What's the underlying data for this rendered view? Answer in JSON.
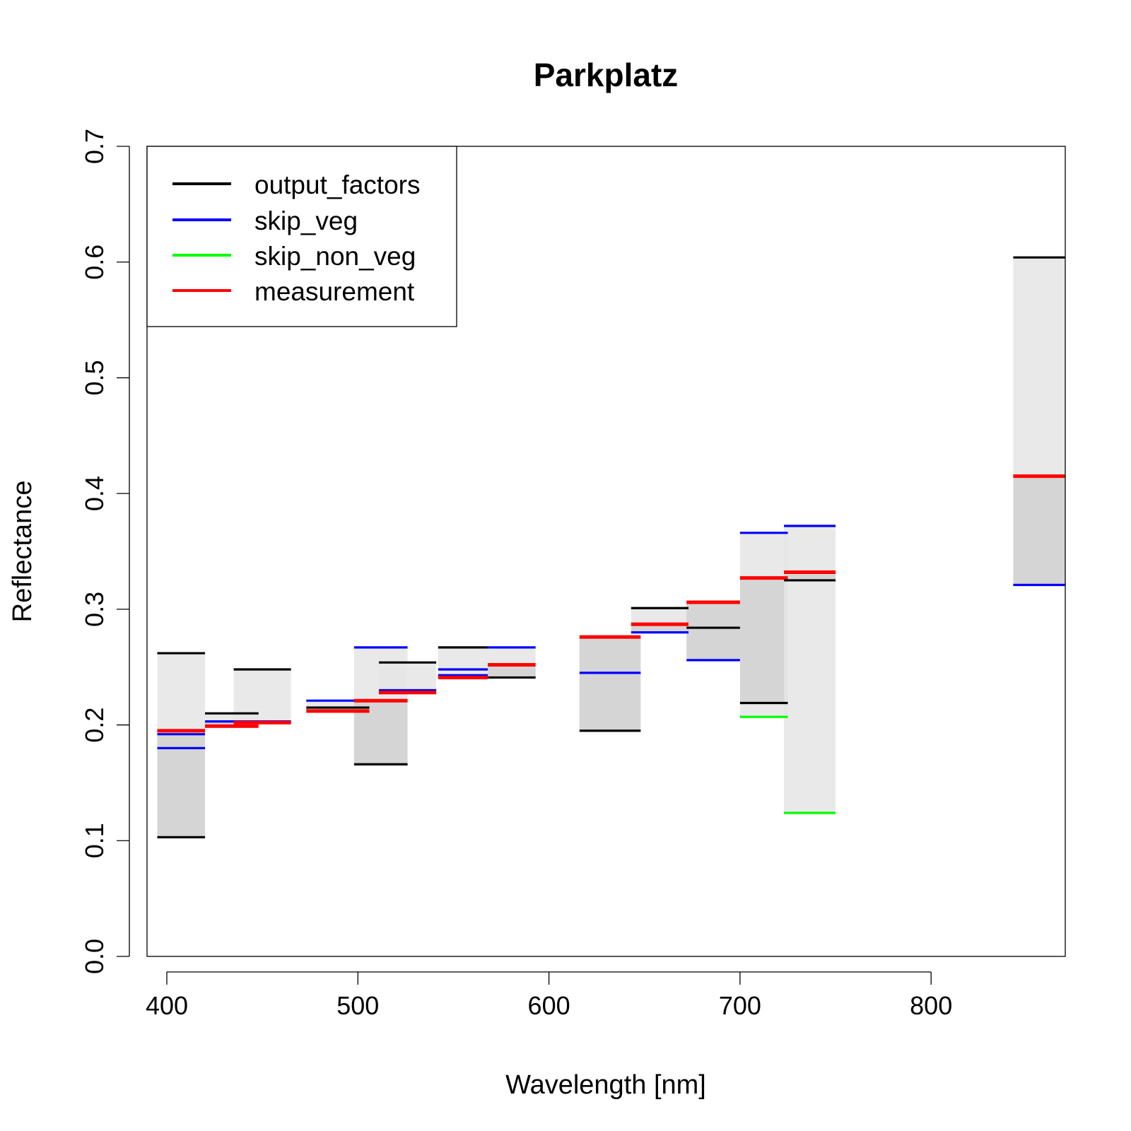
{
  "chart_data": {
    "type": "bar",
    "title": "Parkplatz",
    "xlabel": "Wavelength [nm]",
    "ylabel": "Reflectance",
    "xlim": [
      390,
      870
    ],
    "ylim": [
      0,
      0.7
    ],
    "xticks": [
      400,
      500,
      600,
      700,
      800
    ],
    "xtick_labels": [
      "400",
      "500",
      "600",
      "700",
      "800"
    ],
    "yticks": [
      0,
      0.1,
      0.2,
      0.3,
      0.4,
      0.5,
      0.6,
      0.7
    ],
    "ytick_labels": [
      "0.0",
      "0.1",
      "0.2",
      "0.3",
      "0.4",
      "0.5",
      "0.6",
      "0.7"
    ],
    "grid": false,
    "legend_position": "top-left",
    "colors": {
      "output_factors": "#000000",
      "skip_veg": "#0000ff",
      "skip_non_veg": "#00ff00",
      "measurement": "#ff0000",
      "range_light": "#e5e5e5",
      "range_dark": "#bdbdbd"
    },
    "legend": [
      {
        "name": "output_factors",
        "color": "#000000"
      },
      {
        "name": "skip_veg",
        "color": "#0000ff"
      },
      {
        "name": "skip_non_veg",
        "color": "#00ff00"
      },
      {
        "name": "measurement",
        "color": "#ff0000"
      }
    ],
    "bands": [
      {
        "x": [
          395,
          420
        ],
        "output_factors": [
          0.262,
          0.103
        ],
        "skip_veg": [
          0.192,
          0.18
        ],
        "skip_non_veg": [],
        "measurement": 0.195
      },
      {
        "x": [
          420,
          448
        ],
        "output_factors": [
          0.21
        ],
        "skip_veg": [
          0.203
        ],
        "skip_non_veg": [],
        "measurement": 0.199
      },
      {
        "x": [
          435,
          465
        ],
        "output_factors": [
          0.248
        ],
        "skip_veg": [
          0.203
        ],
        "skip_non_veg": [],
        "measurement": 0.202
      },
      {
        "x": [
          473,
          506
        ],
        "output_factors": [
          0.215
        ],
        "skip_veg": [
          0.221
        ],
        "skip_non_veg": [],
        "measurement": 0.212
      },
      {
        "x": [
          498,
          526
        ],
        "output_factors": [
          0.166
        ],
        "skip_veg": [
          0.267
        ],
        "skip_non_veg": [],
        "measurement": 0.221
      },
      {
        "x": [
          511,
          541
        ],
        "output_factors": [
          0.254
        ],
        "skip_veg": [
          0.23
        ],
        "skip_non_veg": [],
        "measurement": 0.228
      },
      {
        "x": [
          542,
          568
        ],
        "output_factors": [
          0.267
        ],
        "skip_veg": [
          0.248,
          0.243
        ],
        "skip_non_veg": [],
        "measurement": 0.241
      },
      {
        "x": [
          568,
          593
        ],
        "output_factors": [
          0.241
        ],
        "skip_veg": [
          0.267
        ],
        "skip_non_veg": [],
        "measurement": 0.252
      },
      {
        "x": [
          616,
          648
        ],
        "output_factors": [
          0.195
        ],
        "skip_veg": [
          0.245
        ],
        "skip_non_veg": [],
        "measurement": 0.276
      },
      {
        "x": [
          643,
          673
        ],
        "output_factors": [
          0.301
        ],
        "skip_veg": [
          0.28
        ],
        "skip_non_veg": [],
        "measurement": 0.287
      },
      {
        "x": [
          672,
          700
        ],
        "output_factors": [
          0.284
        ],
        "skip_veg": [
          0.256
        ],
        "skip_non_veg": [],
        "measurement": 0.306
      },
      {
        "x": [
          700,
          725
        ],
        "output_factors": [
          0.219
        ],
        "skip_veg": [
          0.366
        ],
        "skip_non_veg": [
          0.207
        ],
        "measurement": 0.327
      },
      {
        "x": [
          723,
          750
        ],
        "output_factors": [
          0.325
        ],
        "skip_veg": [
          0.372
        ],
        "skip_non_veg": [
          0.124
        ],
        "measurement": 0.332
      },
      {
        "x": [
          843,
          870
        ],
        "output_factors": [
          0.604
        ],
        "skip_veg": [
          0.321
        ],
        "skip_non_veg": [],
        "measurement": 0.415
      }
    ]
  }
}
